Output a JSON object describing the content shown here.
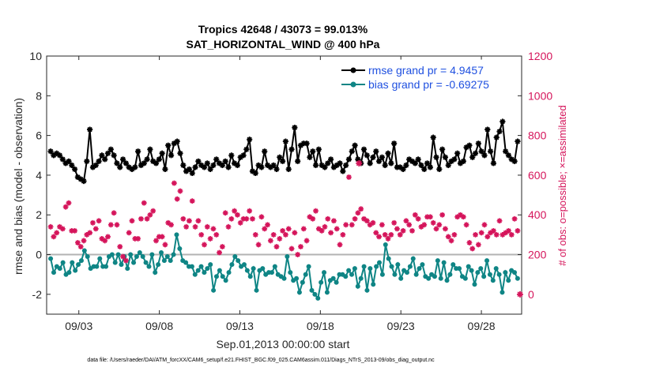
{
  "chart_data": {
    "type": "line",
    "title": "Tropics 42648 / 43073 = 99.013%",
    "subtitle": "SAT_HORIZONTAL_WIND @ 400 hPa",
    "xlabel": "Sep.01,2013 00:00:00 start",
    "ylabel": "rmse and bias (model - observation)",
    "ylabel_right": "# of obs: o=possible; ×=assimilated",
    "x_tick_labels": [
      "09/03",
      "09/08",
      "09/13",
      "09/18",
      "09/23",
      "09/28"
    ],
    "x_tick_days": [
      3,
      8,
      13,
      18,
      23,
      28
    ],
    "xlim_days": [
      1,
      30.5
    ],
    "ylim": [
      -3,
      10
    ],
    "y_ticks": [
      -2,
      0,
      2,
      4,
      6,
      8,
      10
    ],
    "ylim_right": [
      -100,
      1200
    ],
    "y_ticks_right": [
      0,
      200,
      400,
      600,
      800,
      1000,
      1200
    ],
    "footnote": "data file: /Users/raeder/DAI/ATM_forcXX/CAM6_setup/f.e21.FHIST_BGC.f09_025.CAM6assim.011/Diags_NTrS_2013-09/obs_diag_output.nc",
    "colors": {
      "rmse": "#000000",
      "bias": "#0f8585",
      "obs": "#d5155b",
      "zero": "#b3b3b3"
    },
    "legend_position": "top-right",
    "series": [
      {
        "name": "rmse grand pr = 4.9457",
        "axis": "left",
        "style": "line-star",
        "values": [
          5.2,
          5.0,
          5.1,
          5.0,
          4.8,
          4.6,
          4.7,
          4.5,
          4.3,
          3.9,
          3.8,
          3.7,
          4.7,
          6.3,
          4.4,
          4.5,
          4.7,
          5.0,
          4.8,
          5.1,
          5.3,
          5.0,
          4.6,
          4.4,
          4.8,
          4.6,
          4.4,
          4.3,
          4.4,
          5.2,
          4.5,
          4.6,
          4.8,
          5.3,
          4.7,
          4.6,
          4.8,
          5.1,
          4.3,
          5.5,
          5.0,
          5.6,
          5.7,
          5.1,
          4.5,
          4.2,
          4.3,
          4.1,
          4.4,
          4.7,
          4.5,
          4.4,
          4.6,
          4.3,
          4.5,
          4.8,
          4.6,
          4.5,
          4.7,
          4.4,
          5.0,
          4.6,
          4.5,
          4.9,
          5.0,
          5.3,
          5.8,
          4.2,
          4.1,
          4.5,
          4.4,
          5.2,
          4.5,
          4.4,
          4.5,
          4.3,
          4.9,
          4.7,
          5.7,
          4.3,
          5.3,
          6.4,
          4.7,
          5.5,
          5.6,
          5.6,
          4.9,
          5.2,
          4.5,
          5.3,
          4.5,
          4.4,
          4.6,
          4.8,
          4.4,
          4.5,
          4.6,
          4.2,
          4.5,
          4.8,
          5.2,
          5.5,
          4.8,
          4.6,
          5.3,
          5.0,
          4.6,
          4.9,
          5.2,
          4.7,
          4.9,
          4.5,
          5.1,
          4.6,
          5.6,
          4.4,
          4.4,
          4.3,
          4.5,
          4.8,
          4.7,
          4.6,
          4.8,
          4.5,
          4.3,
          4.6,
          4.4,
          5.9,
          4.9,
          4.3,
          5.3,
          4.9,
          4.5,
          4.7,
          4.8,
          5.1,
          4.6,
          4.7,
          5.4,
          5.5,
          4.9,
          5.1,
          5.6,
          5.2,
          5.0,
          6.3,
          5.2,
          4.6,
          5.9,
          6.2,
          6.7,
          5.2,
          5.0,
          4.8,
          4.7,
          5.7
        ]
      },
      {
        "name": "bias grand pr = -0.69275",
        "axis": "left",
        "style": "line-circle",
        "values": [
          -0.2,
          -0.9,
          -0.6,
          -0.7,
          -0.4,
          -1.0,
          -0.9,
          -0.4,
          -0.8,
          -0.5,
          -0.3,
          0.2,
          -0.1,
          -0.7,
          -0.6,
          -0.6,
          -0.2,
          -0.6,
          -0.6,
          -0.1,
          0.0,
          -0.4,
          0.0,
          -0.5,
          -0.1,
          -0.7,
          0.0,
          -0.4,
          -0.1,
          0.1,
          -0.1,
          -0.4,
          -0.6,
          0.0,
          -0.9,
          -0.5,
          0.1,
          -0.3,
          -0.1,
          -0.3,
          0.0,
          1.0,
          0.3,
          -0.3,
          -0.4,
          -0.6,
          -0.6,
          -1.0,
          -0.8,
          -0.6,
          -0.9,
          -0.7,
          -0.5,
          -1.8,
          -1.1,
          -0.8,
          -1.1,
          -1.3,
          -0.9,
          -0.5,
          -0.1,
          -0.3,
          -0.6,
          -0.5,
          -0.8,
          -1.1,
          -0.7,
          -1.8,
          -0.8,
          -0.7,
          -1.0,
          -0.9,
          -0.9,
          -0.6,
          -1.0,
          -1.1,
          -1.2,
          -0.1,
          -0.9,
          -1.3,
          -1.2,
          -1.9,
          -1.4,
          -1.0,
          -0.6,
          -1.8,
          -2.0,
          -2.2,
          -1.4,
          -0.9,
          -1.9,
          -1.3,
          -1.2,
          -1.4,
          -1.0,
          -1.0,
          -1.1,
          -0.8,
          -1.0,
          -0.7,
          -1.6,
          -1.2,
          -0.6,
          -1.8,
          -0.7,
          -1.5,
          -0.6,
          -0.4,
          -1.0,
          0.5,
          -0.2,
          -0.6,
          -1.0,
          -0.5,
          -1.2,
          -0.8,
          -0.9,
          -0.6,
          -0.2,
          -1.0,
          -0.7,
          -0.5,
          -1.1,
          -1.2,
          -1.0,
          -1.1,
          -0.3,
          -1.2,
          -0.4,
          -1.3,
          -1.0,
          -0.5,
          -0.7,
          -0.7,
          -1.1,
          -1.2,
          -0.6,
          -0.8,
          -1.5,
          -0.9,
          -0.7,
          -1.1,
          -0.3,
          -1.0,
          -1.3,
          -0.7,
          -1.0,
          -1.9,
          -0.9,
          -1.3,
          -0.8,
          -0.9,
          -1.2
        ]
      },
      {
        "name": "obs assimilated",
        "axis": "right",
        "style": "marker-star",
        "values": [
          340,
          290,
          310,
          340,
          330,
          440,
          460,
          320,
          320,
          260,
          240,
          270,
          300,
          310,
          360,
          330,
          370,
          280,
          270,
          290,
          350,
          410,
          350,
          240,
          190,
          170,
          310,
          370,
          280,
          280,
          380,
          460,
          380,
          400,
          420,
          270,
          290,
          290,
          250,
          360,
          350,
          560,
          480,
          520,
          380,
          340,
          370,
          470,
          340,
          370,
          300,
          250,
          340,
          280,
          330,
          300,
          210,
          240,
          410,
          340,
          380,
          420,
          400,
          360,
          380,
          380,
          420,
          380,
          300,
          250,
          390,
          330,
          350,
          270,
          300,
          240,
          280,
          320,
          300,
          330,
          230,
          310,
          200,
          240,
          330,
          270,
          390,
          380,
          420,
          330,
          320,
          340,
          380,
          310,
          370,
          330,
          250,
          300,
          350,
          590,
          350,
          380,
          410,
          430,
          380,
          370,
          350,
          360,
          310,
          290,
          350,
          300,
          280,
          300,
          360,
          330,
          300,
          320,
          370,
          350,
          320,
          400,
          380,
          340,
          350,
          390,
          390,
          360,
          330,
          350,
          400,
          330,
          290,
          270,
          300,
          390,
          400,
          390,
          350,
          260,
          230,
          300,
          250,
          310,
          350,
          290,
          310,
          320,
          300,
          370,
          300,
          310,
          320,
          300,
          380,
          320
        ]
      }
    ],
    "highlight_markers": [
      {
        "series": "obs assimilated",
        "day": 20.4,
        "value": 660
      },
      {
        "series": "obs assimilated",
        "day": 30.4,
        "value": 0
      }
    ]
  }
}
